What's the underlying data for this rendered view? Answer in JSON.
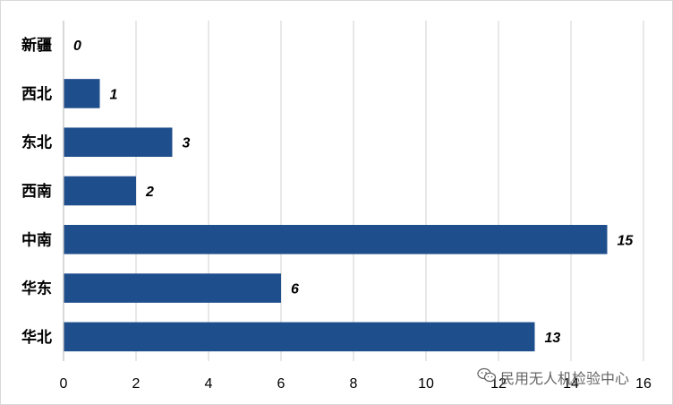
{
  "chart_data": {
    "type": "bar",
    "orientation": "horizontal",
    "categories": [
      "新疆",
      "西北",
      "东北",
      "西南",
      "中南",
      "华东",
      "华北"
    ],
    "values": [
      0,
      1,
      3,
      2,
      15,
      6,
      13
    ],
    "xlim": [
      0,
      16
    ],
    "xticks": [
      0,
      2,
      4,
      6,
      8,
      10,
      12,
      14,
      16
    ],
    "grid": true,
    "data_labels": true,
    "bar_color": "#1F4E8C",
    "title": "",
    "xlabel": "",
    "ylabel": ""
  },
  "watermark": {
    "text": "民用无人机检验中心",
    "icon": "wechat-icon"
  }
}
